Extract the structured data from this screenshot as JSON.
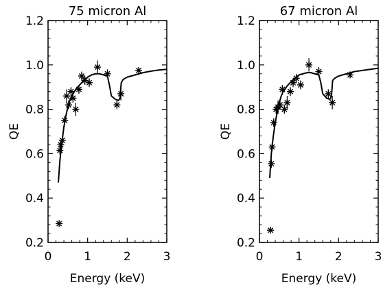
{
  "chart_data": [
    {
      "type": "scatter",
      "title": "75 micron Al",
      "xlabel": "Energy (keV)",
      "ylabel": "QE",
      "xlim": [
        0,
        3
      ],
      "ylim": [
        0.2,
        1.2
      ],
      "xticks": [
        "0",
        "1",
        "2",
        "3"
      ],
      "yticks": [
        "0.2",
        "0.4",
        "0.6",
        "0.8",
        "1.0",
        "1.2"
      ],
      "grid": false,
      "series": [
        {
          "kind": "points",
          "marker": "asterisk",
          "x": [
            0.28,
            0.3,
            0.32,
            0.36,
            0.42,
            0.47,
            0.52,
            0.58,
            0.63,
            0.7,
            0.78,
            0.85,
            0.93,
            1.04,
            1.25,
            1.5,
            1.74,
            1.84,
            2.29
          ],
          "y": [
            0.285,
            0.615,
            0.64,
            0.66,
            0.75,
            0.86,
            0.82,
            0.88,
            0.85,
            0.8,
            0.89,
            0.95,
            0.93,
            0.92,
            0.99,
            0.96,
            0.82,
            0.87,
            0.975
          ],
          "yerr": [
            0.0,
            0.02,
            0.02,
            0.02,
            0.02,
            0.03,
            0.02,
            0.02,
            0.02,
            0.03,
            0.02,
            0.02,
            0.02,
            0.02,
            0.03,
            0.02,
            0.02,
            0.03,
            0.01
          ]
        },
        {
          "kind": "curve",
          "x": [
            0.26,
            0.3,
            0.35,
            0.4,
            0.45,
            0.5,
            0.55,
            0.6,
            0.7,
            0.8,
            0.9,
            1.0,
            1.1,
            1.2,
            1.3,
            1.4,
            1.5,
            1.55,
            1.6,
            1.7,
            1.78,
            1.82,
            1.84,
            1.85,
            1.9,
            2.0,
            2.2,
            2.4,
            2.6,
            2.8,
            3.0
          ],
          "y": [
            0.47,
            0.57,
            0.65,
            0.72,
            0.77,
            0.81,
            0.84,
            0.86,
            0.89,
            0.91,
            0.93,
            0.945,
            0.955,
            0.96,
            0.96,
            0.955,
            0.95,
            0.91,
            0.86,
            0.845,
            0.84,
            0.85,
            0.9,
            0.92,
            0.935,
            0.945,
            0.955,
            0.965,
            0.972,
            0.977,
            0.98
          ]
        }
      ]
    },
    {
      "type": "scatter",
      "title": "67 micron Al",
      "xlabel": "Energy (keV)",
      "ylabel": "QE",
      "xlim": [
        0,
        3
      ],
      "ylim": [
        0.2,
        1.2
      ],
      "xticks": [
        "0",
        "1",
        "2",
        "3"
      ],
      "yticks": [
        "0.2",
        "0.4",
        "0.6",
        "0.8",
        "1.0",
        "1.2"
      ],
      "grid": false,
      "series": [
        {
          "kind": "points",
          "marker": "asterisk",
          "x": [
            0.28,
            0.3,
            0.32,
            0.36,
            0.42,
            0.47,
            0.52,
            0.58,
            0.63,
            0.7,
            0.78,
            0.85,
            0.93,
            1.04,
            1.25,
            1.5,
            1.74,
            1.84,
            2.29
          ],
          "y": [
            0.255,
            0.555,
            0.63,
            0.74,
            0.8,
            0.81,
            0.82,
            0.89,
            0.8,
            0.83,
            0.88,
            0.92,
            0.94,
            0.91,
            1.0,
            0.97,
            0.87,
            0.83,
            0.955
          ],
          "yerr": [
            0.0,
            0.02,
            0.02,
            0.02,
            0.02,
            0.03,
            0.02,
            0.02,
            0.02,
            0.03,
            0.02,
            0.02,
            0.02,
            0.02,
            0.03,
            0.02,
            0.02,
            0.03,
            0.01
          ]
        },
        {
          "kind": "curve",
          "x": [
            0.26,
            0.3,
            0.35,
            0.4,
            0.45,
            0.5,
            0.55,
            0.6,
            0.7,
            0.8,
            0.9,
            1.0,
            1.1,
            1.2,
            1.3,
            1.4,
            1.5,
            1.55,
            1.6,
            1.7,
            1.78,
            1.82,
            1.84,
            1.85,
            1.9,
            2.0,
            2.2,
            2.4,
            2.6,
            2.8,
            3.0
          ],
          "y": [
            0.49,
            0.6,
            0.68,
            0.74,
            0.79,
            0.83,
            0.86,
            0.88,
            0.905,
            0.925,
            0.94,
            0.955,
            0.96,
            0.965,
            0.965,
            0.96,
            0.955,
            0.92,
            0.87,
            0.85,
            0.845,
            0.86,
            0.91,
            0.93,
            0.94,
            0.95,
            0.96,
            0.97,
            0.975,
            0.98,
            0.985
          ]
        }
      ]
    }
  ]
}
